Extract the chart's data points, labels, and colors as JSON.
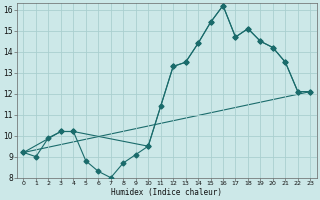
{
  "xlabel": "Humidex (Indice chaleur)",
  "background_color": "#cce8e8",
  "grid_color": "#aacfcf",
  "line_color": "#1a6b6b",
  "xlim": [
    -0.5,
    23.5
  ],
  "ylim": [
    8,
    16.3
  ],
  "xticks": [
    0,
    1,
    2,
    3,
    4,
    5,
    6,
    7,
    8,
    9,
    10,
    11,
    12,
    13,
    14,
    15,
    16,
    17,
    18,
    19,
    20,
    21,
    22,
    23
  ],
  "yticks": [
    8,
    9,
    10,
    11,
    12,
    13,
    14,
    15,
    16
  ],
  "series1_x": [
    0,
    1,
    2,
    3,
    4,
    5,
    6,
    7,
    8,
    9,
    10,
    11,
    12,
    13,
    14,
    15,
    16,
    17,
    18,
    19,
    20,
    21,
    22,
    23
  ],
  "series1_y": [
    9.2,
    9.0,
    9.9,
    10.2,
    10.2,
    8.8,
    8.3,
    8.0,
    8.7,
    9.1,
    9.5,
    11.4,
    13.3,
    13.5,
    14.4,
    15.4,
    16.2,
    14.7,
    15.1,
    14.5,
    14.2,
    13.5,
    12.1,
    12.1
  ],
  "series2_x": [
    0,
    3,
    4,
    10,
    12,
    13,
    14,
    15,
    16,
    17,
    18,
    19,
    20,
    21,
    22,
    23
  ],
  "series2_y": [
    9.2,
    10.2,
    10.2,
    9.5,
    13.3,
    13.5,
    14.4,
    15.4,
    16.2,
    14.7,
    15.1,
    14.5,
    14.2,
    13.5,
    12.1,
    12.1
  ],
  "series3_x": [
    0,
    23
  ],
  "series3_y": [
    9.2,
    12.1
  ],
  "marker": "D",
  "marker_size": 2.5,
  "linewidth": 0.8
}
